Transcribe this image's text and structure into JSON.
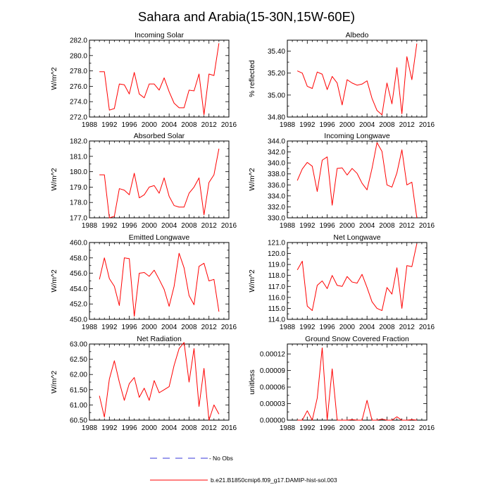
{
  "figure": {
    "title": "Sahara and Arabia(15-30N,15W-60E)",
    "legend": {
      "obs_label": "No Obs",
      "obs_color": "#3a3ad8",
      "model_label": "b.e21.B1850cmip6.f09_g17.DAMIP-hist-sol.003",
      "model_color": "#ff0000"
    }
  },
  "chart_data": [
    {
      "type": "line",
      "title": "Incoming Solar",
      "ylabel": "W/m^2",
      "xlim": [
        1988,
        2016
      ],
      "xticks": [
        1988,
        1992,
        1996,
        2000,
        2004,
        2008,
        2012,
        2016
      ],
      "ylim": [
        272.0,
        282.0
      ],
      "yticks": [
        "272.0",
        "274.0",
        "276.0",
        "278.0",
        "280.0",
        "282.0"
      ],
      "x": [
        1990,
        1991,
        1992,
        1993,
        1994,
        1995,
        1996,
        1997,
        1998,
        1999,
        2000,
        2001,
        2002,
        2003,
        2004,
        2005,
        2006,
        2007,
        2008,
        2009,
        2010,
        2011,
        2012,
        2013,
        2014
      ],
      "series": [
        {
          "color": "#ff0000",
          "values": [
            277.9,
            277.9,
            272.9,
            273.1,
            276.3,
            276.2,
            275.0,
            277.8,
            275.0,
            274.5,
            276.3,
            276.3,
            275.5,
            277.1,
            275.3,
            273.8,
            273.2,
            273.2,
            275.5,
            275.4,
            277.6,
            272.3,
            277.6,
            277.4,
            281.6
          ]
        }
      ]
    },
    {
      "type": "line",
      "title": "Albedo",
      "ylabel": "% reflected",
      "xlim": [
        1988,
        2016
      ],
      "xticks": [
        1988,
        1992,
        1996,
        2000,
        2004,
        2008,
        2012,
        2016
      ],
      "ylim": [
        34.8,
        35.5
      ],
      "yticks": [
        "34.80",
        "35.00",
        "35.20",
        "35.40"
      ],
      "x": [
        1990,
        1991,
        1992,
        1993,
        1994,
        1995,
        1996,
        1997,
        1998,
        1999,
        2000,
        2001,
        2002,
        2003,
        2004,
        2005,
        2006,
        2007,
        2008,
        2009,
        2010,
        2011,
        2012,
        2013,
        2014
      ],
      "series": [
        {
          "color": "#ff0000",
          "values": [
            35.22,
            35.2,
            35.08,
            35.06,
            35.21,
            35.19,
            35.05,
            35.17,
            35.11,
            34.91,
            35.14,
            35.11,
            35.09,
            35.1,
            35.13,
            34.97,
            34.86,
            34.82,
            35.11,
            34.92,
            35.25,
            34.83,
            35.35,
            35.14,
            35.47
          ]
        }
      ]
    },
    {
      "type": "line",
      "title": "Absorbed Solar",
      "ylabel": "W/m^2",
      "xlim": [
        1988,
        2016
      ],
      "xticks": [
        1988,
        1992,
        1996,
        2000,
        2004,
        2008,
        2012,
        2016
      ],
      "ylim": [
        177.0,
        182.0
      ],
      "yticks": [
        "177.0",
        "178.0",
        "179.0",
        "180.0",
        "181.0",
        "182.0"
      ],
      "x": [
        1990,
        1991,
        1992,
        1993,
        1994,
        1995,
        1996,
        1997,
        1998,
        1999,
        2000,
        2001,
        2002,
        2003,
        2004,
        2005,
        2006,
        2007,
        2008,
        2009,
        2010,
        2011,
        2012,
        2013,
        2014
      ],
      "series": [
        {
          "color": "#ff0000",
          "values": [
            179.8,
            179.8,
            177.0,
            177.1,
            178.9,
            178.8,
            178.5,
            179.9,
            178.3,
            178.5,
            179.0,
            179.1,
            178.6,
            179.6,
            178.4,
            177.8,
            177.7,
            177.7,
            178.6,
            179.0,
            179.6,
            177.2,
            179.3,
            179.8,
            181.5
          ]
        }
      ]
    },
    {
      "type": "line",
      "title": "Incoming Longwave",
      "ylabel": "W/m^2",
      "xlim": [
        1988,
        2016
      ],
      "xticks": [
        1988,
        1992,
        1996,
        2000,
        2004,
        2008,
        2012,
        2016
      ],
      "ylim": [
        330.0,
        344.0
      ],
      "yticks": [
        "330.0",
        "332.0",
        "334.0",
        "336.0",
        "338.0",
        "340.0",
        "342.0",
        "344.0"
      ],
      "x": [
        1990,
        1991,
        1992,
        1993,
        1994,
        1995,
        1996,
        1997,
        1998,
        1999,
        2000,
        2001,
        2002,
        2003,
        2004,
        2005,
        2006,
        2007,
        2008,
        2009,
        2010,
        2011,
        2012,
        2013,
        2014
      ],
      "series": [
        {
          "color": "#ff0000",
          "values": [
            336.8,
            338.9,
            340.1,
            339.4,
            334.8,
            340.5,
            341.1,
            332.3,
            339.0,
            339.1,
            337.8,
            339.0,
            338.1,
            336.3,
            335.1,
            339.0,
            343.7,
            342.1,
            336.0,
            335.6,
            338.2,
            342.4,
            336.0,
            336.5,
            330.0
          ]
        }
      ]
    },
    {
      "type": "line",
      "title": "Emitted Longwave",
      "ylabel": "W/m^2",
      "xlim": [
        1988,
        2016
      ],
      "xticks": [
        1988,
        1992,
        1996,
        2000,
        2004,
        2008,
        2012,
        2016
      ],
      "ylim": [
        450.0,
        460.0
      ],
      "yticks": [
        "450.0",
        "452.0",
        "454.0",
        "456.0",
        "458.0",
        "460.0"
      ],
      "x": [
        1990,
        1991,
        1992,
        1993,
        1994,
        1995,
        1996,
        1997,
        1998,
        1999,
        2000,
        2001,
        2002,
        2003,
        2004,
        2005,
        2006,
        2007,
        2008,
        2009,
        2010,
        2011,
        2012,
        2013,
        2014
      ],
      "series": [
        {
          "color": "#ff0000",
          "values": [
            455.2,
            458.0,
            455.3,
            454.3,
            451.8,
            458.0,
            457.9,
            450.4,
            456.0,
            456.1,
            455.6,
            456.4,
            455.2,
            453.9,
            451.7,
            454.3,
            458.6,
            456.7,
            453.1,
            451.9,
            456.9,
            457.3,
            455.0,
            455.2,
            451.0
          ]
        }
      ]
    },
    {
      "type": "line",
      "title": "Net Longwave",
      "ylabel": "W/m^2",
      "xlim": [
        1988,
        2016
      ],
      "xticks": [
        1988,
        1992,
        1996,
        2000,
        2004,
        2008,
        2012,
        2016
      ],
      "ylim": [
        114.0,
        121.0
      ],
      "yticks": [
        "114.0",
        "115.0",
        "116.0",
        "117.0",
        "118.0",
        "119.0",
        "120.0",
        "121.0"
      ],
      "x": [
        1990,
        1991,
        1992,
        1993,
        1994,
        1995,
        1996,
        1997,
        1998,
        1999,
        2000,
        2001,
        2002,
        2003,
        2004,
        2005,
        2006,
        2007,
        2008,
        2009,
        2010,
        2011,
        2012,
        2013,
        2014
      ],
      "series": [
        {
          "color": "#ff0000",
          "values": [
            118.5,
            119.3,
            115.2,
            114.8,
            117.1,
            117.5,
            116.8,
            118.0,
            117.1,
            117.0,
            117.9,
            117.4,
            117.3,
            118.1,
            116.9,
            115.6,
            115.0,
            114.8,
            116.9,
            116.3,
            118.7,
            115.0,
            118.9,
            118.8,
            120.9
          ]
        }
      ]
    },
    {
      "type": "line",
      "title": "Net Radiation",
      "ylabel": "W/m^2",
      "xlim": [
        1988,
        2016
      ],
      "xticks": [
        1988,
        1992,
        1996,
        2000,
        2004,
        2008,
        2012,
        2016
      ],
      "ylim": [
        60.5,
        63.0
      ],
      "yticks": [
        "60.50",
        "61.00",
        "61.50",
        "62.00",
        "62.50",
        "63.00"
      ],
      "x": [
        1990,
        1991,
        1992,
        1993,
        1994,
        1995,
        1996,
        1997,
        1998,
        1999,
        2000,
        2001,
        2002,
        2003,
        2004,
        2005,
        2006,
        2007,
        2008,
        2009,
        2010,
        2011,
        2012,
        2013,
        2014
      ],
      "series": [
        {
          "color": "#ff0000",
          "values": [
            61.3,
            60.6,
            61.85,
            62.45,
            61.75,
            61.15,
            61.7,
            61.9,
            61.25,
            61.55,
            61.15,
            61.8,
            61.4,
            61.5,
            61.6,
            62.3,
            62.85,
            63.05,
            61.75,
            62.85,
            60.95,
            62.2,
            60.5,
            61.0,
            60.7
          ]
        }
      ]
    },
    {
      "type": "line",
      "title": "Ground Snow Covered Fraction",
      "ylabel": "unitless",
      "xlim": [
        1988,
        2016
      ],
      "xticks": [
        1988,
        1992,
        1996,
        2000,
        2004,
        2008,
        2012,
        2016
      ],
      "ylim": [
        0.0,
        0.000138
      ],
      "yticks": [
        "0.00000",
        "0.00003",
        "0.00006",
        "0.00009",
        "0.00012"
      ],
      "x": [
        1990,
        1991,
        1992,
        1993,
        1994,
        1995,
        1996,
        1997,
        1998,
        1999,
        2000,
        2001,
        2002,
        2003,
        2004,
        2005,
        2006,
        2007,
        2008,
        2009,
        2010,
        2011,
        2012,
        2013,
        2014
      ],
      "series": [
        {
          "color": "#ff0000",
          "values": [
            0.0,
            0.0,
            1.7e-05,
            0.0,
            4e-05,
            0.000131,
            0.0,
            9.3e-05,
            0.0,
            0.0,
            0.0,
            1e-06,
            0.0,
            0.0,
            3.6e-05,
            0.0,
            0.0,
            2e-06,
            0.0,
            0.0,
            6e-06,
            0.0,
            0.0,
            1e-06,
            0.0
          ]
        }
      ]
    }
  ]
}
